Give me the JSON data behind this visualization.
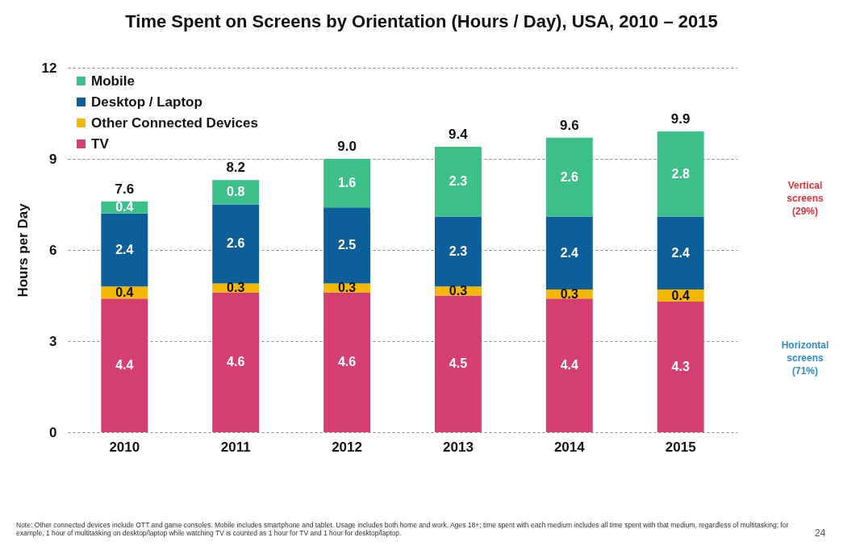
{
  "chart_data": {
    "type": "bar",
    "title": "Time Spent on Screens by Orientation (Hours / Day), USA, 2010 – 2015",
    "ylabel": "Hours per Day",
    "categories": [
      "2010",
      "2011",
      "2012",
      "2013",
      "2014",
      "2015"
    ],
    "stacked": true,
    "series": [
      {
        "name": "TV",
        "color": "#d43f6f",
        "values": [
          4.4,
          4.6,
          4.6,
          4.5,
          4.4,
          4.3
        ]
      },
      {
        "name": "Other Connected Devices",
        "color": "#f5b800",
        "values": [
          0.4,
          0.3,
          0.3,
          0.3,
          0.3,
          0.4
        ]
      },
      {
        "name": "Desktop / Laptop",
        "color": "#0d5f9a",
        "values": [
          2.4,
          2.6,
          2.5,
          2.3,
          2.4,
          2.4
        ]
      },
      {
        "name": "Mobile",
        "color": "#3dbf8a",
        "values": [
          0.4,
          0.8,
          1.6,
          2.3,
          2.6,
          2.8
        ]
      }
    ],
    "totals": [
      "7.6",
      "8.2",
      "9.0",
      "9.4",
      "9.6",
      "9.9"
    ],
    "data_labels": true,
    "ylim": [
      0,
      12
    ],
    "yticks": [
      0,
      3,
      6,
      9,
      12
    ],
    "grid": "y",
    "legend": "top left",
    "annotations": [
      "Vertical screens (29%)",
      "Horizontal screens (71%)",
      "Note: Other connected devices include OTT and game consoles. Mobile includes smartphone and tablet. Usage includes both home and work. Ages 18+; time spent with each medium includes all time spent with that medium, regardless of multitasking; for example, 1 hour of multitasking on desktop/laptop while watching TV is counted as 1 hour for TV and 1 hour for desktop/laptop.",
      "24"
    ]
  }
}
